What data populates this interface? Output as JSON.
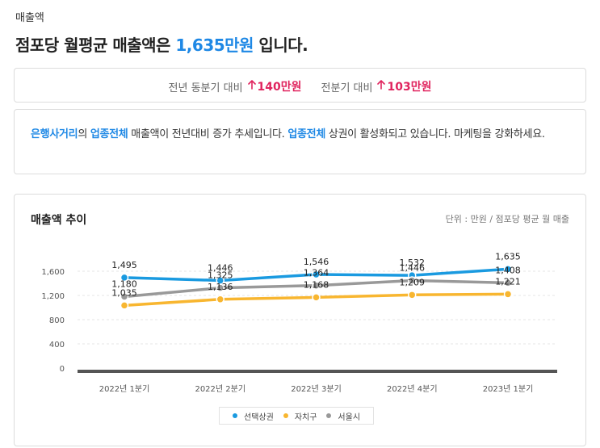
{
  "section_label": "매출액",
  "headline": {
    "prefix": "점포당 월평균 매출액은 ",
    "amount": "1,635만원",
    "suffix": " 입니다."
  },
  "comparison": {
    "yoy_label": "전년 동분기 대비",
    "yoy_value": "140만원",
    "qoq_label": "전분기 대비",
    "qoq_value": "103만원",
    "arrow_icon": "arrow-up-icon",
    "up_color": "#e0245e"
  },
  "insight": {
    "area": "은행사거리",
    "t1": "의 ",
    "industry": "업종전체",
    "t2": " 매출액이 전년대비 증가 추세입니다. ",
    "industry2": "업종전체",
    "t3": " 상권이 활성화되고 있습니다. 마케팅을 강화하세요."
  },
  "chart_header": {
    "title": "매출액 추이",
    "unit": "단위 : 만원 / 점포당 평균 월 매출"
  },
  "chart_data": {
    "type": "line",
    "categories": [
      "2022년 1분기",
      "2022년 2분기",
      "2022년 3분기",
      "2022년 4분기",
      "2023년 1분기"
    ],
    "series": [
      {
        "name": "선택상권",
        "color": "#1a9ae0",
        "values": [
          1495,
          1446,
          1546,
          1532,
          1635
        ],
        "labels": [
          "1,495",
          "1,446",
          "1,546",
          "1,532",
          "1,635"
        ]
      },
      {
        "name": "자치구",
        "color": "#f8b630",
        "values": [
          1035,
          1136,
          1168,
          1209,
          1221
        ],
        "labels": [
          "1,035",
          "1,136",
          "1,168",
          "1,209",
          "1,221"
        ]
      },
      {
        "name": "서울시",
        "color": "#999999",
        "values": [
          1180,
          1325,
          1364,
          1446,
          1408
        ],
        "labels": [
          "1,180",
          "1,325",
          "1,364",
          "1,446",
          "1,408"
        ]
      }
    ],
    "yticks": [
      0,
      400,
      800,
      1200,
      1600
    ],
    "ytick_labels": [
      "0",
      "400",
      "800",
      "1,200",
      "1,600"
    ],
    "ylim": [
      0,
      1600
    ],
    "grid": true,
    "legend_position": "bottom"
  }
}
